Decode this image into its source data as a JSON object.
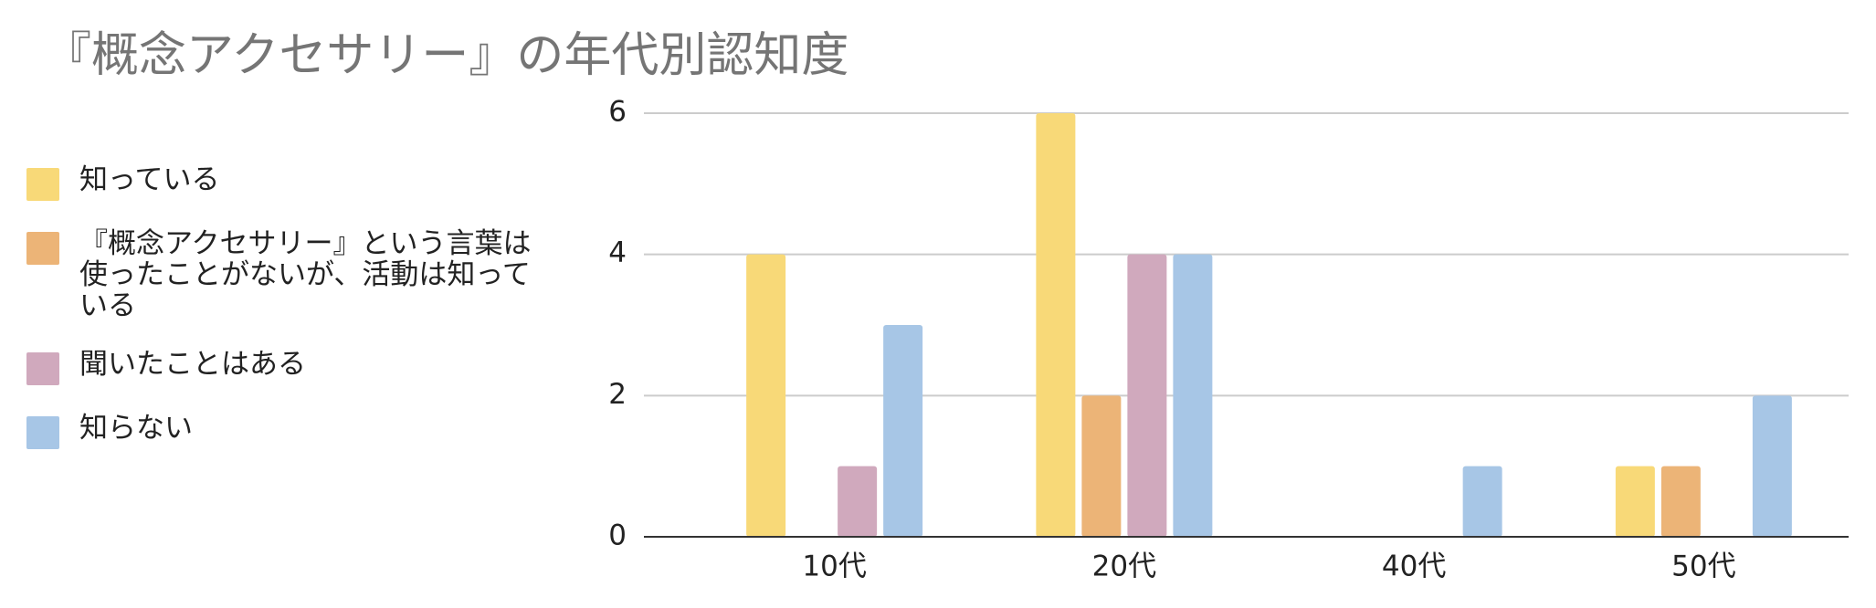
{
  "chart_data": {
    "type": "bar",
    "title": "『概念アクセサリー』の年代別認知度",
    "categories": [
      "10代",
      "20代",
      "40代",
      "50代"
    ],
    "series": [
      {
        "name": "知っている",
        "color": "#f8d978",
        "values": [
          4,
          6,
          0,
          1
        ]
      },
      {
        "name": "『概念アクセサリー』という言葉は\n使ったことがないが、活動は知っている",
        "color": "#ecb477",
        "values": [
          0,
          2,
          0,
          1
        ]
      },
      {
        "name": "聞いたことはある",
        "color": "#d0a9bd",
        "values": [
          1,
          4,
          0,
          0
        ]
      },
      {
        "name": "知らない",
        "color": "#a7c6e6",
        "values": [
          3,
          4,
          1,
          2
        ]
      }
    ],
    "ylim": [
      0,
      6
    ],
    "yticks": [
      0,
      2,
      4,
      6
    ],
    "grid": true
  }
}
